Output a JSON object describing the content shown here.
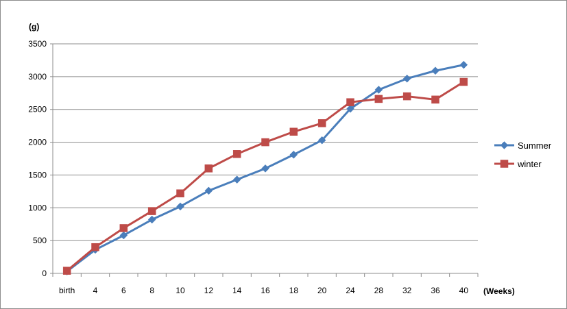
{
  "chart_data": {
    "type": "line",
    "y_unit_label": "(g)",
    "x_unit_label": "(Weeks)",
    "categories": [
      "birth",
      "4",
      "6",
      "8",
      "10",
      "12",
      "14",
      "16",
      "18",
      "20",
      "24",
      "28",
      "32",
      "36",
      "40"
    ],
    "ylim": [
      0,
      3500
    ],
    "yticks": [
      0,
      500,
      1000,
      1500,
      2000,
      2500,
      3000,
      3500
    ],
    "grid": true,
    "legend_position": "right",
    "series": [
      {
        "name": "Summer",
        "color": "#4a7ebb",
        "marker": "diamond",
        "values": [
          30,
          360,
          580,
          820,
          1020,
          1260,
          1430,
          1600,
          1810,
          2030,
          2510,
          2800,
          2970,
          3090,
          3180
        ]
      },
      {
        "name": "winter",
        "color": "#be4b48",
        "marker": "square",
        "values": [
          40,
          400,
          690,
          950,
          1220,
          1600,
          1820,
          2000,
          2160,
          2290,
          2610,
          2660,
          2700,
          2650,
          2920
        ]
      }
    ]
  }
}
